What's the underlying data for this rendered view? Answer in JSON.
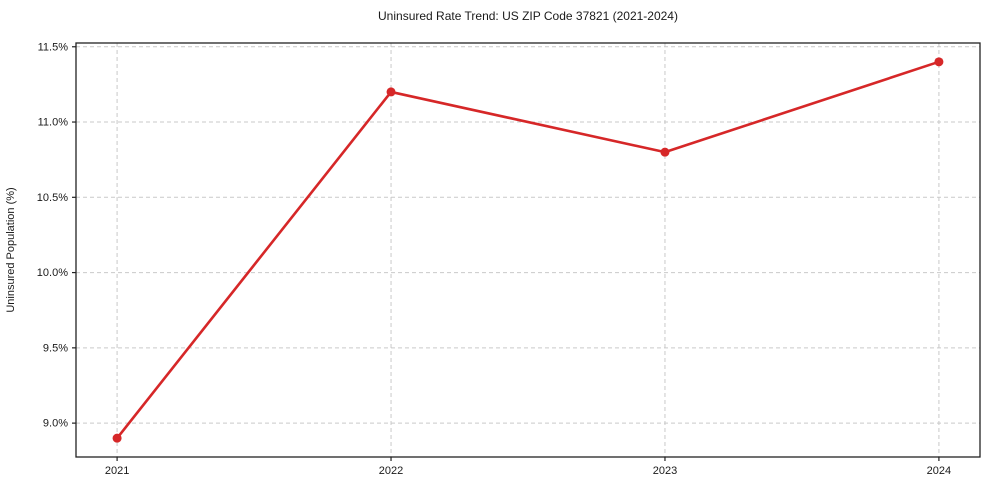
{
  "chart_data": {
    "type": "line",
    "title": "Uninsured Rate Trend: US ZIP Code 37821 (2021-2024)",
    "xlabel": "",
    "ylabel": "Uninsured Population (%)",
    "x": [
      2021,
      2022,
      2023,
      2024
    ],
    "xtick_labels": [
      "2021",
      "2022",
      "2023",
      "2024"
    ],
    "series": [
      {
        "name": "Uninsured Population (%)",
        "values": [
          8.9,
          11.2,
          10.8,
          11.4
        ]
      }
    ],
    "yticks": [
      9.0,
      9.5,
      10.0,
      10.5,
      11.0,
      11.5
    ],
    "ytick_labels": [
      "9.0%",
      "9.5%",
      "10.0%",
      "10.5%",
      "11.0%",
      "11.5%"
    ],
    "xlim": [
      2020.85,
      2024.15
    ],
    "ylim": [
      8.775,
      11.525
    ],
    "grid": true,
    "grid_style": "dashed",
    "legend": "none",
    "marker": "circle",
    "colors": {
      "line": "#d62728",
      "grid": "#c9c9c9",
      "axis": "#222222",
      "text": "#1a1a1a",
      "background": "#ffffff"
    }
  }
}
